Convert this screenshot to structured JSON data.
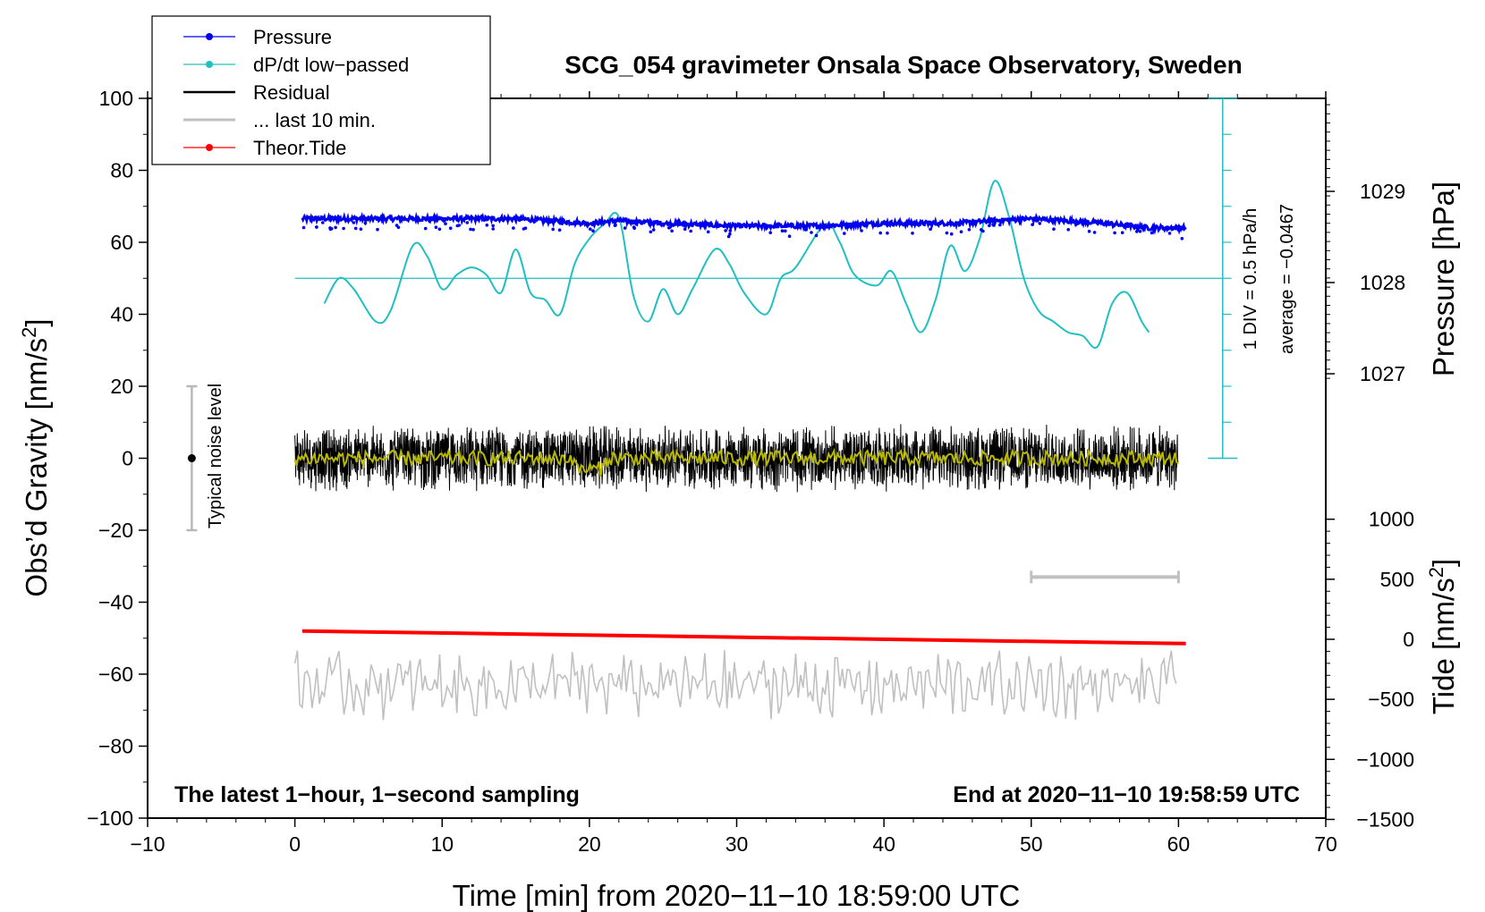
{
  "chart_data": {
    "type": "line",
    "title": "SCG_054 gravimeter Onsala Space Observatory, Sweden",
    "xlabel": "Time [min] from 2020−11−10 18:59:00 UTC",
    "ylabel_left_main": "Obs’d Gravity [nm/s",
    "ylabel_left_sup": "2",
    "ylabel_left_end": "]",
    "ylabel_right_pressure": "Pressure [hPa]",
    "ylabel_right_tide_main": "Tide [nm/s",
    "ylabel_right_tide_sup": "2",
    "ylabel_right_tide_end": "]",
    "xlim": [
      -10,
      70
    ],
    "ylim_gravity": [
      -100,
      100
    ],
    "pressure_axis_ticks": [
      1027,
      1028,
      1029
    ],
    "tide_axis_ticks": [
      1000,
      500,
      0,
      -500,
      -1000,
      -1500
    ],
    "x_ticks": [
      -10,
      0,
      10,
      20,
      30,
      40,
      50,
      60,
      70
    ],
    "y_ticks": [
      100,
      80,
      60,
      40,
      20,
      0,
      -20,
      -40,
      -60,
      -80,
      -100
    ],
    "legend": [
      {
        "label": "Pressure",
        "color": "#0000ee",
        "marker": true
      },
      {
        "label": "dP/dt low−passed",
        "color": "#20c0c0",
        "marker": true
      },
      {
        "label": "Residual",
        "color": "#000000",
        "marker": false
      },
      {
        "label": "... last 10 min.",
        "color": "#c0c0c0",
        "marker": false
      },
      {
        "label": "Theor.Tide",
        "color": "#ff0000",
        "marker": true
      }
    ],
    "annotations": {
      "noise_label": "Typical noise level",
      "div_label": "1 DIV = 0.5 hPa/h",
      "avg_label": "average = −0.0467",
      "bottom_left": "The latest 1−hour, 1−second sampling",
      "bottom_right": "End at 2020−11−10 19:58:59 UTC"
    },
    "series": [
      {
        "name": "Pressure",
        "unit": "hPa",
        "color": "#0000ee",
        "x": [
          0.5,
          5,
          10,
          15,
          20,
          22,
          25,
          30,
          35,
          40,
          45,
          47.5,
          50,
          55,
          58,
          60.5
        ],
        "values": [
          1028.7,
          1028.7,
          1028.7,
          1028.7,
          1028.65,
          1028.68,
          1028.65,
          1028.62,
          1028.62,
          1028.65,
          1028.65,
          1028.68,
          1028.7,
          1028.65,
          1028.6,
          1028.6
        ]
      },
      {
        "name": "dP/dt low-passed",
        "unit": "nm/s2 plot scale",
        "color": "#20c0c0",
        "x": [
          2,
          3,
          4,
          5.5,
          6.5,
          8,
          9,
          10,
          11,
          12,
          13,
          14,
          15,
          16,
          17,
          18,
          19,
          20,
          21,
          22,
          23,
          24,
          25,
          26,
          27,
          28.5,
          29.5,
          30.5,
          32,
          33,
          34,
          36,
          37,
          38,
          39.5,
          40.5,
          41.5,
          42.5,
          43.5,
          44.5,
          45.5,
          46.5,
          47.5,
          48.5,
          49.5,
          50.5,
          51.5,
          52.5,
          53.5,
          54.5,
          55.5,
          56.5,
          57.5,
          58
        ],
        "values": [
          43,
          50,
          47,
          38,
          41,
          59,
          56,
          47,
          51,
          53,
          51,
          46,
          58,
          46,
          44,
          40,
          54,
          61,
          65,
          67,
          45,
          38,
          47,
          40,
          47,
          58,
          54,
          46,
          40,
          50,
          53,
          65,
          60,
          51,
          48,
          52,
          43,
          35,
          44,
          59,
          52,
          61,
          77,
          67,
          50,
          41,
          38,
          35,
          34,
          31,
          43,
          46,
          38,
          35
        ]
      },
      {
        "name": "Residual",
        "unit": "nm/s2",
        "color": "#000000",
        "x_range": [
          0,
          60
        ],
        "center": 0,
        "spread": 8
      },
      {
        "name": "Residual smoothed",
        "unit": "nm/s2",
        "color": "#b8b800",
        "x_range": [
          0,
          60
        ],
        "center": 0,
        "spread": 3
      },
      {
        "name": "... last 10 min.",
        "unit": "nm/s2",
        "color": "#c0c0c0",
        "x_range": [
          0,
          60
        ],
        "center": -63,
        "spread": 7
      },
      {
        "name": "Theor.Tide",
        "unit": "nm/s2",
        "color": "#ff0000",
        "x": [
          0.5,
          60.5
        ],
        "values": [
          -48,
          -51.5
        ]
      }
    ],
    "noise_bar": {
      "x": -7,
      "y_low": -20,
      "y_high": 20,
      "center": 0
    },
    "last10_bar": {
      "x_start": 50,
      "x_end": 60,
      "y": -33
    },
    "dpdt_zero_line": 50
  }
}
